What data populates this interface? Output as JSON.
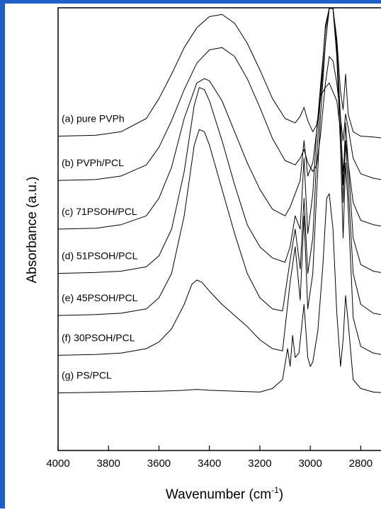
{
  "chart_data": {
    "type": "line",
    "title": "",
    "xlabel": "Wavenumber (cm",
    "xlabel_superscript": "-1",
    "xlabel_suffix": ")",
    "ylabel": "Absorbance (a.u.)",
    "xlim": [
      4000,
      2700
    ],
    "x_reversed": true,
    "ylim": [
      0,
      10
    ],
    "grid": false,
    "xticks": [
      4000,
      3800,
      3600,
      3400,
      3200,
      3000,
      2800
    ],
    "series": [
      {
        "name": "(a) pure PVPh",
        "x": [
          4000,
          3850,
          3750,
          3650,
          3600,
          3550,
          3500,
          3450,
          3400,
          3350,
          3300,
          3250,
          3200,
          3150,
          3100,
          3060,
          3040,
          3025,
          3010,
          2990,
          2975,
          2960,
          2940,
          2925,
          2910,
          2895,
          2880,
          2870,
          2860,
          2850,
          2830,
          2800,
          2750,
          2700
        ],
        "y": [
          7.1,
          7.12,
          7.2,
          7.5,
          7.95,
          8.5,
          9.1,
          9.55,
          9.8,
          9.85,
          9.65,
          9.2,
          8.6,
          7.95,
          7.5,
          7.4,
          7.55,
          7.75,
          7.45,
          7.2,
          7.35,
          7.9,
          9.2,
          10.5,
          10.4,
          9.3,
          8.1,
          7.7,
          8.5,
          7.6,
          7.2,
          7.1,
          7.08,
          7.05
        ]
      },
      {
        "name": "(b) PVPh/PCL",
        "x": [
          4000,
          3850,
          3750,
          3650,
          3600,
          3550,
          3500,
          3450,
          3400,
          3350,
          3300,
          3250,
          3200,
          3150,
          3100,
          3060,
          3040,
          3025,
          3010,
          2990,
          2975,
          2960,
          2940,
          2925,
          2910,
          2895,
          2880,
          2870,
          2860,
          2850,
          2830,
          2800,
          2750,
          2700
        ],
        "y": [
          6.1,
          6.12,
          6.2,
          6.45,
          6.85,
          7.45,
          8.15,
          8.75,
          9.05,
          9.1,
          8.9,
          8.4,
          7.75,
          7.05,
          6.55,
          6.45,
          6.6,
          6.8,
          6.5,
          6.3,
          6.45,
          7.1,
          8.3,
          8.9,
          8.8,
          8.3,
          7.5,
          7.0,
          7.6,
          7.3,
          6.6,
          6.25,
          6.15,
          6.1
        ]
      },
      {
        "name": "(c) 71PSOH/PCL",
        "x": [
          4000,
          3850,
          3750,
          3650,
          3600,
          3550,
          3500,
          3450,
          3420,
          3400,
          3350,
          3300,
          3250,
          3200,
          3150,
          3100,
          3080,
          3060,
          3040,
          3025,
          3010,
          2990,
          2975,
          2960,
          2940,
          2925,
          2910,
          2895,
          2880,
          2870,
          2860,
          2850,
          2830,
          2800,
          2750,
          2700
        ],
        "y": [
          5.0,
          5.02,
          5.1,
          5.3,
          5.7,
          6.4,
          7.5,
          8.3,
          8.4,
          8.35,
          7.9,
          7.2,
          6.5,
          5.9,
          5.45,
          5.3,
          5.5,
          5.8,
          6.1,
          7.0,
          6.2,
          6.5,
          7.2,
          8.0,
          8.2,
          8.3,
          8.1,
          7.9,
          7.2,
          6.3,
          7.0,
          6.5,
          5.6,
          5.2,
          5.1,
          5.05
        ]
      },
      {
        "name": "(d) 51PSOH/PCL",
        "x": [
          4000,
          3850,
          3750,
          3650,
          3600,
          3550,
          3500,
          3460,
          3440,
          3420,
          3400,
          3350,
          3300,
          3250,
          3200,
          3150,
          3100,
          3080,
          3060,
          3040,
          3025,
          3010,
          2990,
          2975,
          2960,
          2940,
          2925,
          2910,
          2895,
          2880,
          2870,
          2860,
          2850,
          2830,
          2800,
          2750,
          2700
        ],
        "y": [
          4.0,
          4.02,
          4.05,
          4.15,
          4.4,
          5.0,
          6.3,
          7.8,
          8.2,
          8.15,
          7.9,
          7.0,
          6.0,
          5.1,
          4.6,
          4.35,
          4.25,
          4.6,
          5.3,
          5.0,
          6.6,
          4.9,
          5.8,
          7.2,
          8.2,
          9.5,
          10.5,
          10.5,
          9.0,
          7.5,
          6.0,
          7.4,
          6.5,
          4.8,
          4.2,
          4.05,
          4.0
        ]
      },
      {
        "name": "(e) 45PSOH/PCL",
        "x": [
          4000,
          3850,
          3750,
          3650,
          3600,
          3550,
          3500,
          3460,
          3440,
          3420,
          3400,
          3350,
          3300,
          3250,
          3200,
          3150,
          3110,
          3080,
          3060,
          3040,
          3025,
          3010,
          2990,
          2975,
          2960,
          2940,
          2925,
          2910,
          2895,
          2880,
          2870,
          2860,
          2850,
          2830,
          2800,
          2750,
          2700
        ],
        "y": [
          3.05,
          3.07,
          3.1,
          3.2,
          3.45,
          4.0,
          5.3,
          6.9,
          7.25,
          7.2,
          6.9,
          5.9,
          4.9,
          4.0,
          3.45,
          3.2,
          3.15,
          4.3,
          5.0,
          4.1,
          5.7,
          4.0,
          4.8,
          6.6,
          8.0,
          9.6,
          10.5,
          10.5,
          9.2,
          7.4,
          5.6,
          7.0,
          6.0,
          4.0,
          3.3,
          3.1,
          3.05
        ]
      },
      {
        "name": "(f) 30PSOH/PCL",
        "x": [
          4000,
          3850,
          3750,
          3650,
          3600,
          3550,
          3500,
          3470,
          3450,
          3430,
          3400,
          3350,
          3300,
          3250,
          3200,
          3150,
          3110,
          3080,
          3060,
          3040,
          3025,
          3010,
          2990,
          2975,
          2960,
          2940,
          2925,
          2910,
          2895,
          2880,
          2870,
          2860,
          2850,
          2830,
          2800,
          2750,
          2700
        ],
        "y": [
          2.15,
          2.17,
          2.2,
          2.3,
          2.45,
          2.75,
          3.3,
          3.75,
          3.85,
          3.8,
          3.6,
          3.3,
          3.05,
          2.8,
          2.5,
          2.3,
          2.25,
          3.8,
          4.6,
          3.4,
          5.3,
          3.2,
          4.0,
          5.8,
          7.5,
          9.2,
          10.5,
          10.5,
          8.9,
          6.8,
          4.8,
          6.5,
          5.5,
          3.0,
          2.35,
          2.2,
          2.15
        ]
      },
      {
        "name": "(g) PS/PCL",
        "x": [
          4000,
          3800,
          3600,
          3500,
          3450,
          3400,
          3300,
          3200,
          3150,
          3110,
          3090,
          3080,
          3070,
          3060,
          3045,
          3025,
          3010,
          3000,
          2990,
          2970,
          2950,
          2935,
          2925,
          2910,
          2895,
          2880,
          2870,
          2860,
          2850,
          2830,
          2800,
          2750,
          2700
        ],
        "y": [
          1.3,
          1.32,
          1.34,
          1.36,
          1.38,
          1.36,
          1.34,
          1.32,
          1.4,
          1.6,
          2.3,
          1.9,
          2.6,
          2.1,
          2.2,
          3.3,
          2.1,
          1.9,
          2.0,
          2.7,
          4.2,
          5.7,
          5.8,
          5.0,
          3.1,
          1.9,
          2.5,
          3.5,
          2.9,
          1.6,
          1.4,
          1.32,
          1.3
        ]
      }
    ]
  }
}
